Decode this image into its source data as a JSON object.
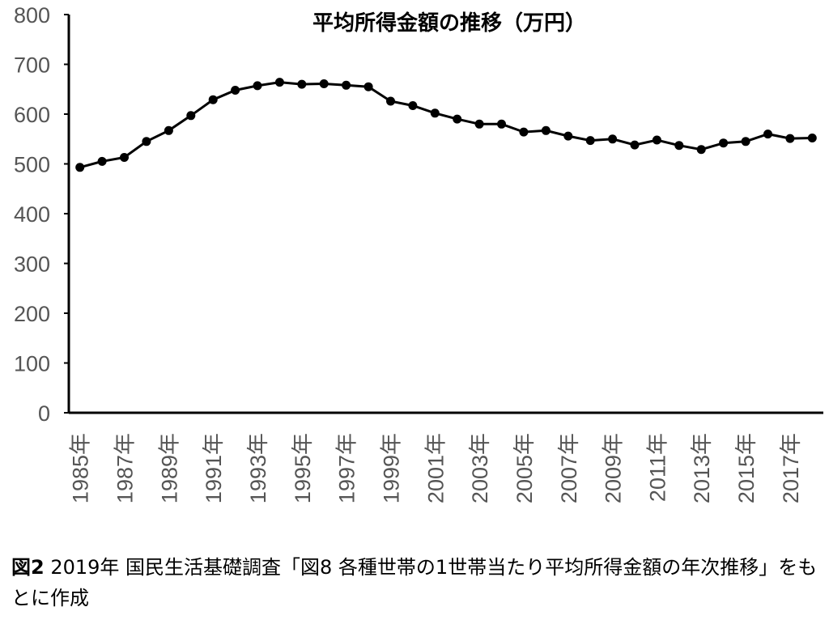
{
  "chart_data": {
    "type": "line",
    "title": "平均所得金額の推移（万円）",
    "xlabel": "",
    "ylabel": "",
    "ylim": [
      0,
      800
    ],
    "yticks": [
      0,
      100,
      200,
      300,
      400,
      500,
      600,
      700,
      800
    ],
    "grid": false,
    "x_categories": [
      "1985年",
      "1986年",
      "1987年",
      "1988年",
      "1989年",
      "1990年",
      "1991年",
      "1992年",
      "1993年",
      "1994年",
      "1995年",
      "1996年",
      "1997年",
      "1998年",
      "1999年",
      "2000年",
      "2001年",
      "2002年",
      "2003年",
      "2004年",
      "2005年",
      "2006年",
      "2007年",
      "2008年",
      "2009年",
      "2010年",
      "2011年",
      "2012年",
      "2013年",
      "2014年",
      "2015年",
      "2016年",
      "2017年",
      "2018年"
    ],
    "x_tick_labels": [
      "1985年",
      "1987年",
      "1989年",
      "1991年",
      "1993年",
      "1995年",
      "1997年",
      "1999年",
      "2001年",
      "2003年",
      "2005年",
      "2007年",
      "2009年",
      "2011年",
      "2013年",
      "2015年",
      "2017年"
    ],
    "series": [
      {
        "values": [
          493,
          505,
          513,
          545,
          567,
          597,
          629,
          648,
          657,
          664,
          660,
          661,
          658,
          655,
          626,
          617,
          602,
          590,
          580,
          580,
          564,
          567,
          556,
          547,
          550,
          538,
          548,
          537,
          529,
          542,
          545,
          560,
          551,
          552
        ]
      }
    ]
  },
  "caption": {
    "figure_label": "図2",
    "text": " 2019年 国民生活基礎調査「図8 各種世帯の1世帯当たり平均所得金額の年次推移」をもとに作成"
  },
  "colors": {
    "line": "#000000",
    "axis": "#000000",
    "tick_text": "#555555"
  }
}
